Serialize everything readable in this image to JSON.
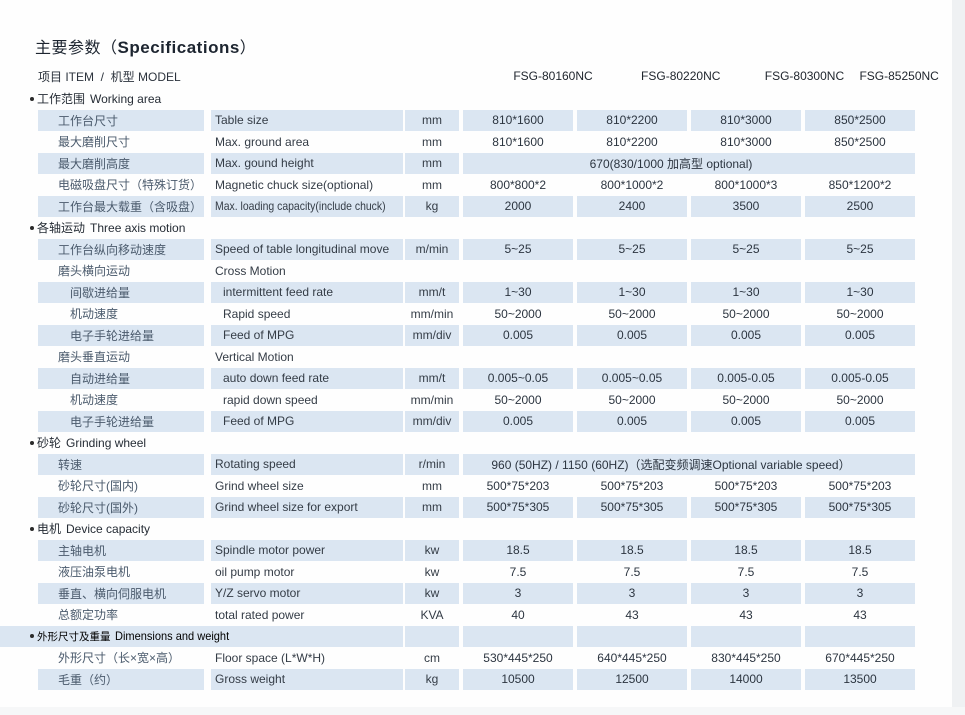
{
  "title": {
    "zh": "主要参数",
    "open": "（",
    "en": "Specifications",
    "close": "）"
  },
  "header": {
    "item_label": "项目 ITEM  /  机型 MODEL",
    "models": [
      "FSG-80160NC",
      "FSG-80220NC",
      "FSG-80300NC",
      "FSG-85250NC"
    ]
  },
  "rows": [
    {
      "type": "section",
      "zh": "工作范围",
      "en": "Working area"
    },
    {
      "type": "data",
      "shaded": true,
      "zh": "工作台尺寸",
      "en": "Table size",
      "unit": "mm",
      "values": [
        "810*1600",
        "810*2200",
        "810*3000",
        "850*2500"
      ]
    },
    {
      "type": "data",
      "shaded": false,
      "zh": "最大磨削尺寸",
      "en": "Max. ground area",
      "unit": "mm",
      "values": [
        "810*1600",
        "810*2200",
        "810*3000",
        "850*2500"
      ]
    },
    {
      "type": "data",
      "shaded": true,
      "zh": "最大磨削高度",
      "en": "Max. gound height",
      "unit": "mm",
      "span": "670(830/1000 加高型 optional)"
    },
    {
      "type": "data",
      "shaded": false,
      "zh": "电磁吸盘尺寸（特殊订货）",
      "en": "Magnetic chuck size(optional)",
      "unit": "mm",
      "values": [
        "800*800*2",
        "800*1000*2",
        "800*1000*3",
        "850*1200*2"
      ]
    },
    {
      "type": "data",
      "shaded": true,
      "zh": "工作台最大载重（含吸盘）",
      "en": "Max. loading capacity(include chuck)",
      "en_condensed": true,
      "unit": "kg",
      "values": [
        "2000",
        "2400",
        "3500",
        "2500"
      ]
    },
    {
      "type": "section",
      "zh": "各轴运动",
      "en": "Three axis motion"
    },
    {
      "type": "data",
      "shaded": true,
      "zh": "工作台纵向移动速度",
      "en": "Speed of table longitudinal move",
      "unit": "m/min",
      "values": [
        "5~25",
        "5~25",
        "5~25",
        "5~25"
      ]
    },
    {
      "type": "data",
      "shaded": false,
      "zh": "磨头横向运动",
      "en": "Cross Motion",
      "unit": "",
      "values": [
        "",
        "",
        "",
        ""
      ]
    },
    {
      "type": "data",
      "shaded": true,
      "indent": true,
      "zh": "间歇进给量",
      "en": "intermittent feed rate",
      "unit": "mm/t",
      "values": [
        "1~30",
        "1~30",
        "1~30",
        "1~30"
      ]
    },
    {
      "type": "data",
      "shaded": false,
      "indent": true,
      "zh": "机动速度",
      "en": "Rapid speed",
      "unit": "mm/min",
      "values": [
        "50~2000",
        "50~2000",
        "50~2000",
        "50~2000"
      ]
    },
    {
      "type": "data",
      "shaded": true,
      "indent": true,
      "zh": "电子手轮进给量",
      "en": "Feed of MPG",
      "unit": "mm/div",
      "values": [
        "0.005",
        "0.005",
        "0.005",
        "0.005"
      ]
    },
    {
      "type": "data",
      "shaded": false,
      "zh": "磨头垂直运动",
      "en": "Vertical Motion",
      "unit": "",
      "values": [
        "",
        "",
        "",
        ""
      ]
    },
    {
      "type": "data",
      "shaded": true,
      "indent": true,
      "zh": "自动进给量",
      "en": "auto down feed rate",
      "unit": "mm/t",
      "values": [
        "0.005~0.05",
        "0.005~0.05",
        "0.005-0.05",
        "0.005-0.05"
      ]
    },
    {
      "type": "data",
      "shaded": false,
      "indent": true,
      "zh": "机动速度",
      "en": "rapid down speed",
      "unit": "mm/min",
      "values": [
        "50~2000",
        "50~2000",
        "50~2000",
        "50~2000"
      ]
    },
    {
      "type": "data",
      "shaded": true,
      "indent": true,
      "zh": "电子手轮进给量",
      "en": "Feed of MPG",
      "unit": "mm/div",
      "values": [
        "0.005",
        "0.005",
        "0.005",
        "0.005"
      ]
    },
    {
      "type": "section",
      "zh": "砂轮",
      "en": "Grinding wheel"
    },
    {
      "type": "data",
      "shaded": true,
      "zh": "转速",
      "en": "Rotating speed",
      "unit": "r/min",
      "span": "960 (50HZ) / 1150 (60HZ)（选配变频调速Optional  variable speed）"
    },
    {
      "type": "data",
      "shaded": false,
      "zh": "砂轮尺寸(国内)",
      "en": "Grind wheel size",
      "unit": "mm",
      "values": [
        "500*75*203",
        "500*75*203",
        "500*75*203",
        "500*75*203"
      ]
    },
    {
      "type": "data",
      "shaded": true,
      "zh": "砂轮尺寸(国外)",
      "en": "Grind wheel size for export",
      "unit": "mm",
      "values": [
        "500*75*305",
        "500*75*305",
        "500*75*305",
        "500*75*305"
      ]
    },
    {
      "type": "section",
      "zh": "电机",
      "en": "Device capacity"
    },
    {
      "type": "data",
      "shaded": true,
      "zh": "主轴电机",
      "en": "Spindle motor power",
      "unit": "kw",
      "values": [
        "18.5",
        "18.5",
        "18.5",
        "18.5"
      ]
    },
    {
      "type": "data",
      "shaded": false,
      "zh": "液压油泵电机",
      "en": "oil pump motor",
      "unit": "kw",
      "values": [
        "7.5",
        "7.5",
        "7.5",
        "7.5"
      ]
    },
    {
      "type": "data",
      "shaded": true,
      "zh": "垂直、横向伺服电机",
      "en": "Y/Z servo motor",
      "unit": "kw",
      "values": [
        "3",
        "3",
        "3",
        "3"
      ]
    },
    {
      "type": "data",
      "shaded": false,
      "zh": "总额定功率",
      "en": "total rated power",
      "unit": "KVA",
      "values": [
        "40",
        "43",
        "43",
        "43"
      ]
    },
    {
      "type": "section-shaded",
      "zh": "外形尺寸及重量",
      "en": "Dimensions and weight"
    },
    {
      "type": "data",
      "shaded": false,
      "zh": "外形尺寸（长×宽×高）",
      "en": "Floor space (L*W*H)",
      "unit": "cm",
      "values": [
        "530*445*250",
        "640*445*250",
        "830*445*250",
        "670*445*250"
      ]
    },
    {
      "type": "data",
      "shaded": true,
      "zh": "毛重（约）",
      "en": "Gross weight",
      "unit": "kg",
      "values": [
        "10500",
        "12500",
        "14000",
        "13500"
      ]
    }
  ],
  "colors": {
    "row_shade": "#dbe6f2",
    "side_strip": "#eff1f3",
    "text": "#2c3540"
  }
}
